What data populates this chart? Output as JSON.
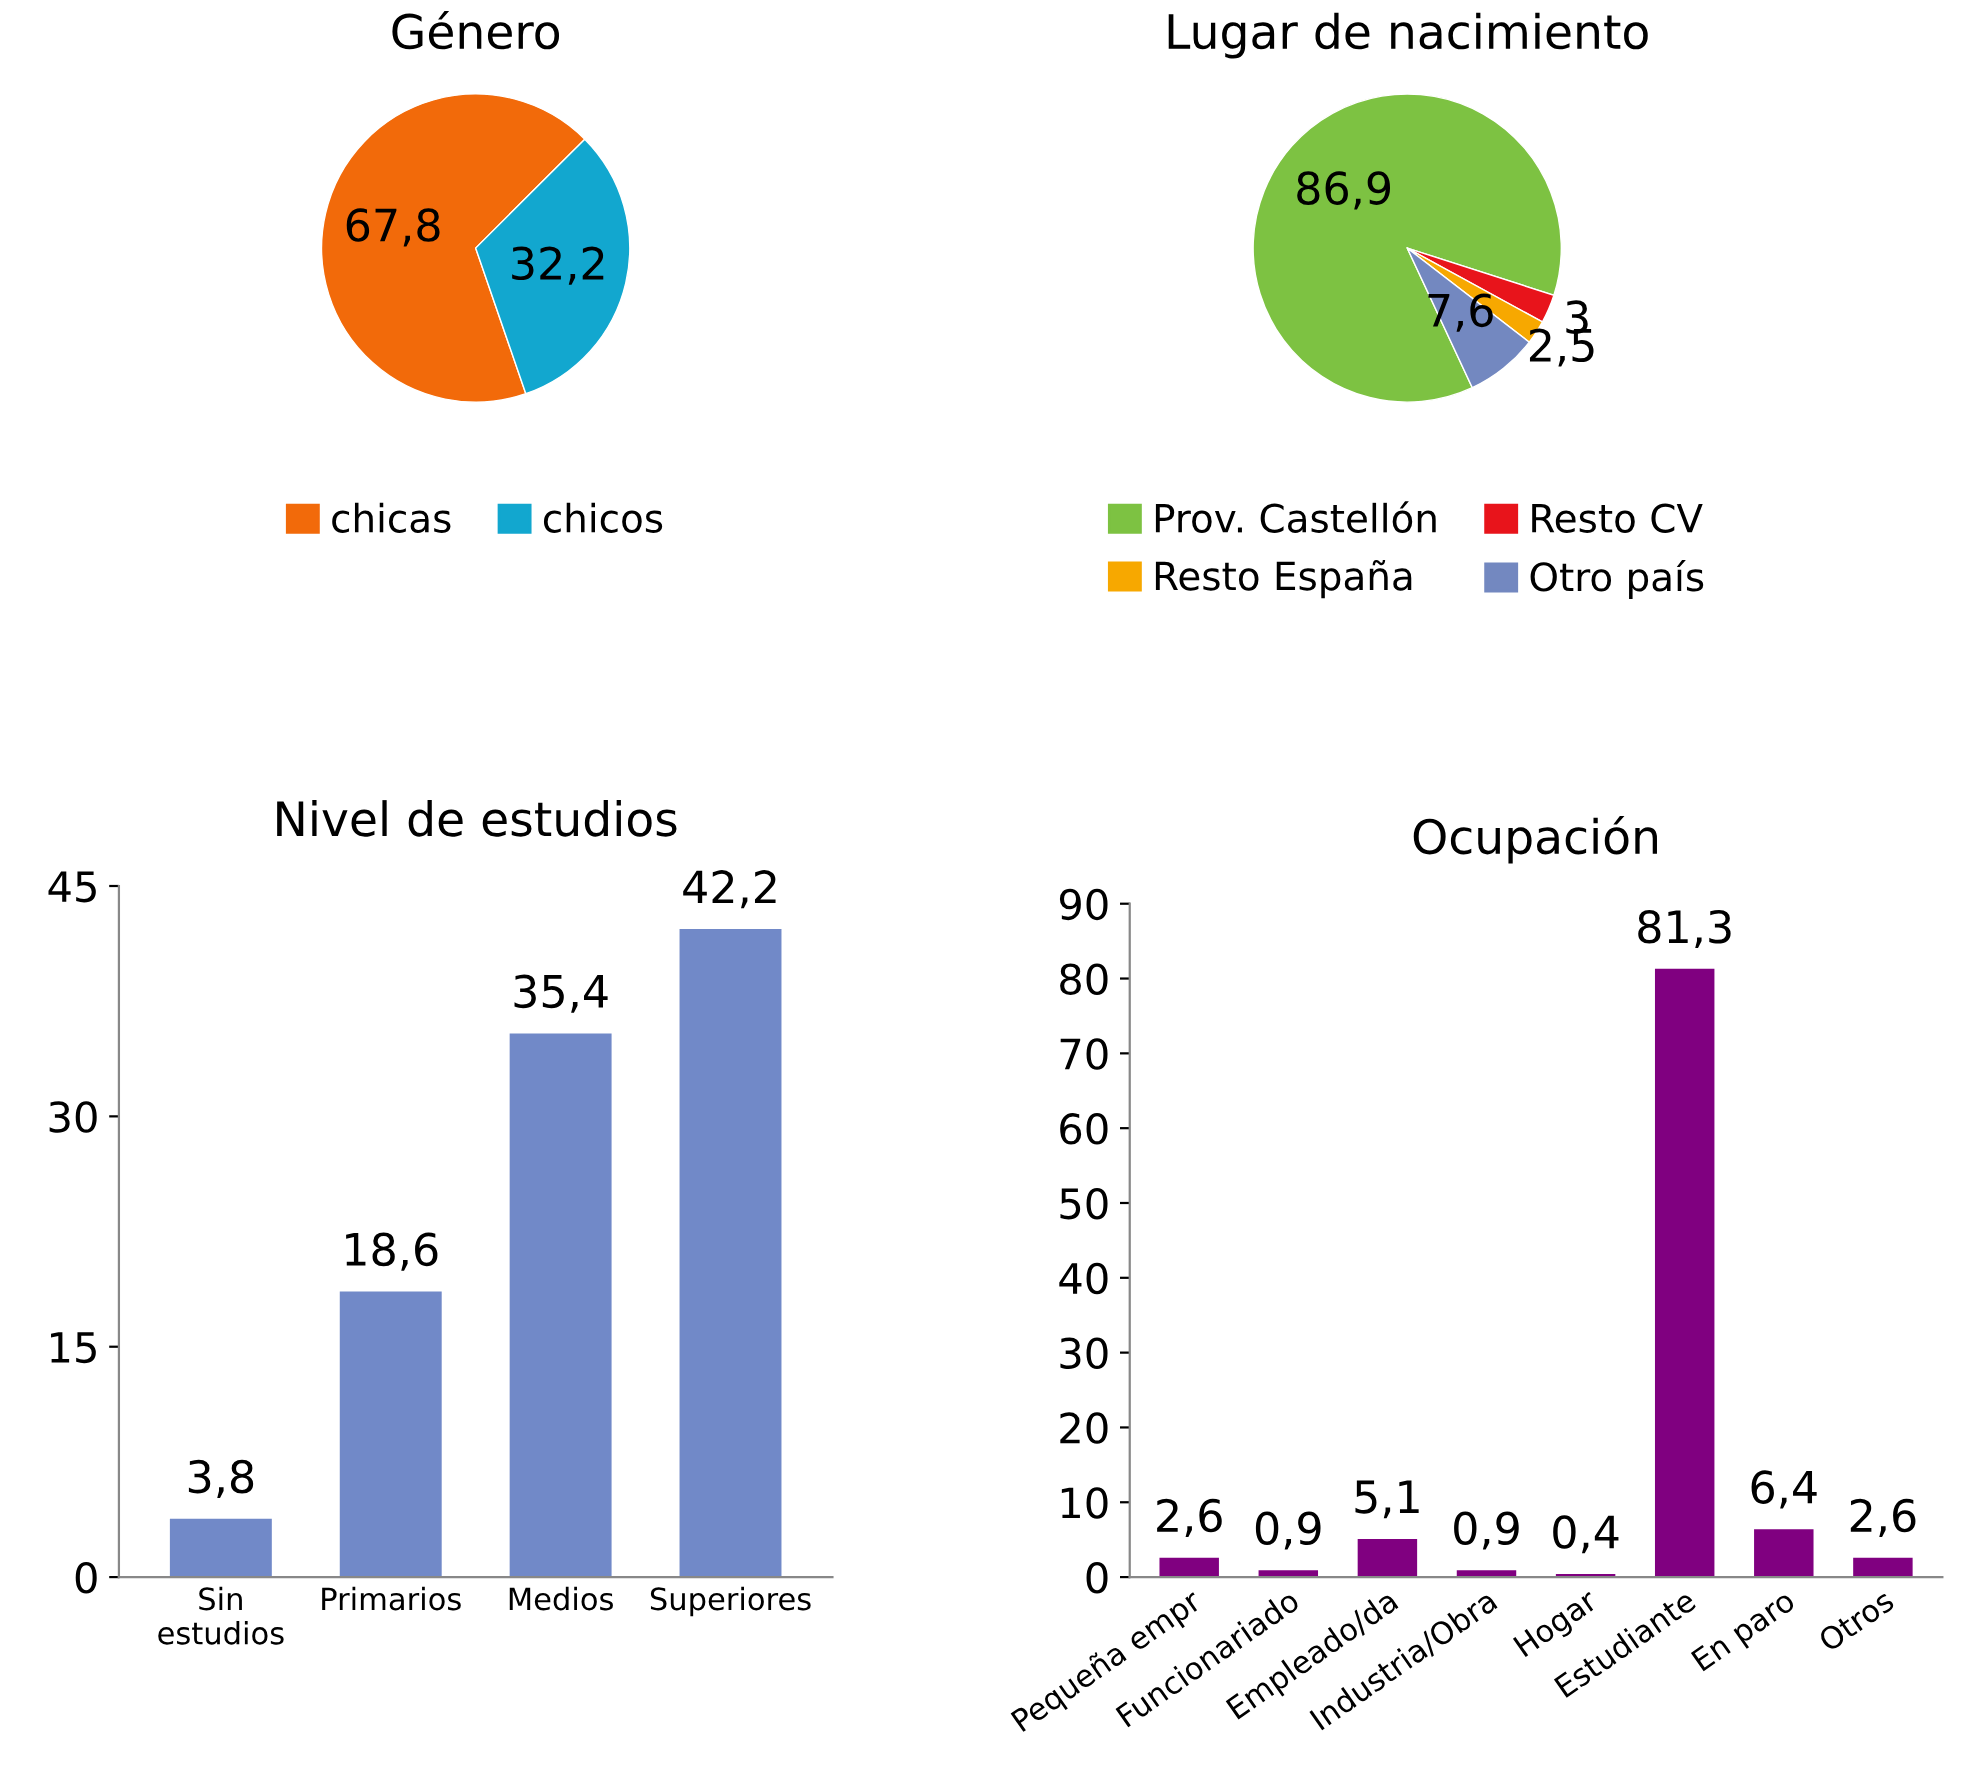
{
  "chart_data": [
    {
      "type": "pie",
      "title": "Género",
      "categories": [
        "chicas",
        "chicos"
      ],
      "values": [
        67.8,
        32.2
      ],
      "value_labels": [
        "67,8",
        "32,2"
      ],
      "colors": [
        "#f26a0a",
        "#12a7cf"
      ],
      "legend": "bottom"
    },
    {
      "type": "pie",
      "title": "Lugar de nacimiento",
      "categories": [
        "Prov. Castellón",
        "Resto CV",
        "Resto España",
        "Otro país"
      ],
      "values": [
        86.9,
        3,
        2.5,
        7.6
      ],
      "value_labels": [
        "86,9",
        "3",
        "2,5",
        "7,6"
      ],
      "colors": [
        "#7dc242",
        "#e8141b",
        "#f7a800",
        "#7388c0"
      ],
      "legend": "bottom"
    },
    {
      "type": "bar",
      "title": "Nivel de estudios",
      "categories": [
        "Sin\nestudios",
        "Primarios",
        "Medios",
        "Superiores"
      ],
      "values": [
        3.8,
        18.6,
        35.4,
        42.2
      ],
      "value_labels": [
        "3,8",
        "18,6",
        "35,4",
        "42,2"
      ],
      "color": "#7189c8",
      "ylim": [
        0,
        45
      ],
      "yticks": [
        0,
        15,
        30,
        45
      ],
      "grid": false
    },
    {
      "type": "bar",
      "title": "Ocupación",
      "categories": [
        "Pequeña empr",
        "Funcionariado",
        "Empleado/da",
        "Industria/Obra",
        "Hogar",
        "Estudiante",
        "En paro",
        "Otros"
      ],
      "values": [
        2.6,
        0.9,
        5.1,
        0.9,
        0.4,
        81.3,
        6.4,
        2.6
      ],
      "value_labels": [
        "2,6",
        "0,9",
        "5,1",
        "0,9",
        "0,4",
        "81,3",
        "6,4",
        "2,6"
      ],
      "color": "#800080",
      "ylim": [
        0,
        90
      ],
      "yticks": [
        0,
        10,
        20,
        30,
        40,
        50,
        60,
        70,
        80,
        90
      ],
      "grid": false
    }
  ]
}
